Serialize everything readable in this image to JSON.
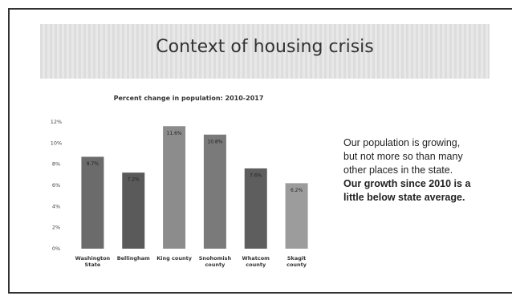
{
  "slide": {
    "title": "Context of housing crisis",
    "body": [
      "Our population is growing,",
      "but not more so than many",
      "other places in the state."
    ],
    "body_bold": [
      "Our growth since 2010 is a",
      "little below state average."
    ]
  },
  "chart_data": {
    "type": "bar",
    "title": "Percent change in population: 2010-2017",
    "categories": [
      "Washington State",
      "Bellingham",
      "King county",
      "Snohomish county",
      "Whatcom county",
      "Skagit county"
    ],
    "values": [
      8.7,
      7.2,
      11.6,
      10.8,
      7.6,
      6.2
    ],
    "value_labels": [
      "8.7%",
      "7.2%",
      "11.6%",
      "10.8%",
      "7.6%",
      "6.2%"
    ],
    "colors": [
      "#6b6b6b",
      "#5a5a5a",
      "#8c8c8c",
      "#7a7a7a",
      "#5e5e5e",
      "#9c9c9c"
    ],
    "ylim": [
      0,
      12
    ],
    "yticks": [
      {
        "value": 0,
        "label": "0%"
      },
      {
        "value": 2,
        "label": "2%"
      },
      {
        "value": 4,
        "label": "4%"
      },
      {
        "value": 6,
        "label": "6%"
      },
      {
        "value": 8,
        "label": "8%"
      },
      {
        "value": 10,
        "label": "10%"
      },
      {
        "value": 12,
        "label": "12%"
      }
    ],
    "grid": false
  }
}
